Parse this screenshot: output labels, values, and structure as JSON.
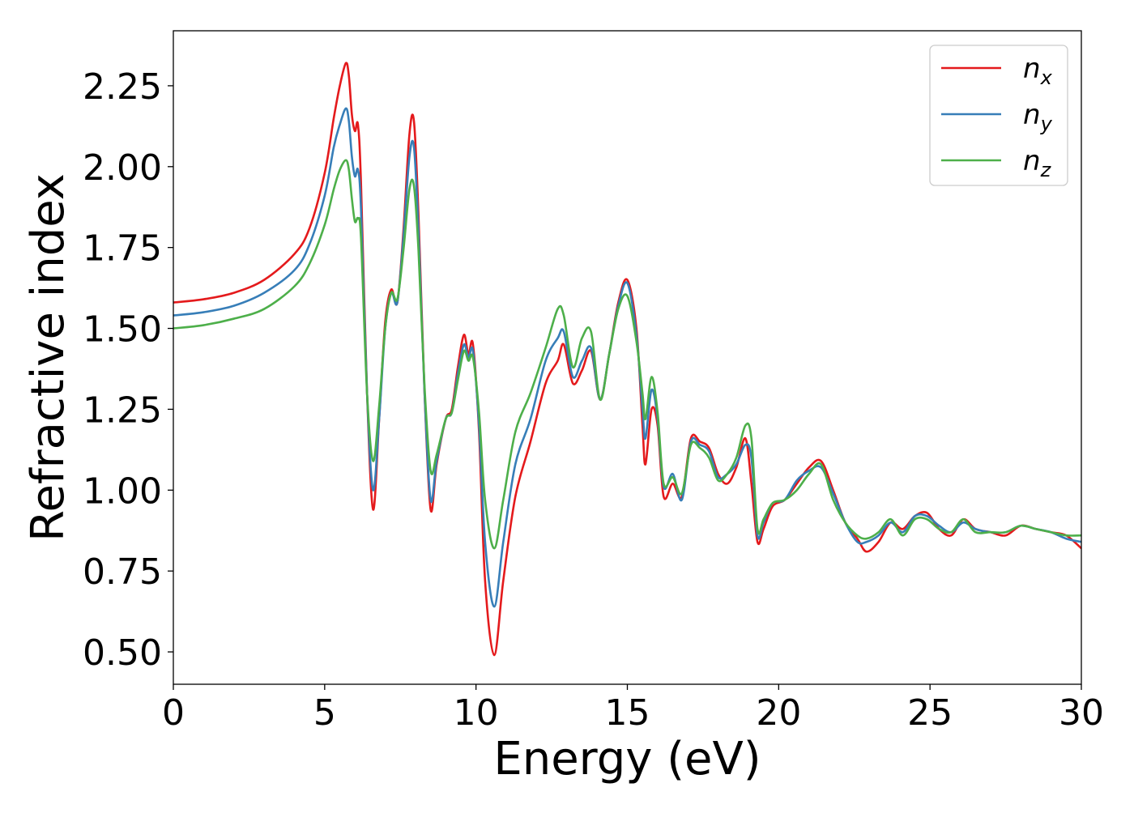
{
  "chart_data": {
    "type": "line",
    "title": "",
    "xlabel": "Energy (eV)",
    "ylabel": "Refractive index",
    "xlim": [
      0,
      30
    ],
    "ylim": [
      0.4,
      2.42
    ],
    "x_ticks": [
      0,
      5,
      10,
      15,
      20,
      25,
      30
    ],
    "y_ticks": [
      0.5,
      0.75,
      1.0,
      1.25,
      1.5,
      1.75,
      2.0,
      2.25
    ],
    "x_tick_labels": [
      "0",
      "5",
      "10",
      "15",
      "20",
      "25",
      "30"
    ],
    "y_tick_labels": [
      "0.50",
      "0.75",
      "1.00",
      "1.25",
      "1.50",
      "1.75",
      "2.00",
      "2.25"
    ],
    "grid": false,
    "legend_position": "top-right",
    "series": [
      {
        "name": "n",
        "subscript": "x",
        "color": "#e41a1c",
        "x": [
          0,
          1,
          2,
          3,
          4,
          4.5,
          5,
          5.3,
          5.5,
          5.7,
          5.8,
          5.9,
          6.0,
          6.1,
          6.2,
          6.4,
          6.6,
          6.8,
          7.0,
          7.2,
          7.4,
          7.6,
          7.8,
          7.95,
          8.1,
          8.3,
          8.5,
          8.7,
          9.0,
          9.2,
          9.4,
          9.6,
          9.75,
          9.9,
          10.1,
          10.3,
          10.6,
          10.9,
          11.3,
          11.8,
          12.3,
          12.7,
          12.9,
          13.2,
          13.5,
          13.8,
          14.1,
          14.4,
          14.7,
          15.0,
          15.3,
          15.5,
          15.6,
          15.8,
          16.0,
          16.2,
          16.5,
          16.8,
          17.1,
          17.4,
          17.7,
          18.0,
          18.3,
          18.6,
          18.9,
          19.1,
          19.3,
          19.5,
          19.8,
          20.2,
          20.6,
          21.0,
          21.4,
          21.8,
          22.2,
          22.6,
          22.9,
          23.3,
          23.7,
          24.1,
          24.5,
          24.9,
          25.3,
          25.7,
          26.1,
          26.5,
          27.0,
          27.5,
          28.0,
          28.5,
          29.0,
          29.5,
          30.0
        ],
        "y": [
          1.58,
          1.59,
          1.61,
          1.65,
          1.73,
          1.81,
          1.98,
          2.15,
          2.25,
          2.32,
          2.28,
          2.16,
          2.11,
          2.13,
          1.95,
          1.3,
          0.94,
          1.22,
          1.52,
          1.62,
          1.58,
          1.8,
          2.1,
          2.14,
          1.85,
          1.3,
          0.94,
          1.08,
          1.22,
          1.25,
          1.38,
          1.48,
          1.42,
          1.45,
          1.18,
          0.72,
          0.49,
          0.72,
          0.98,
          1.15,
          1.33,
          1.4,
          1.45,
          1.33,
          1.37,
          1.43,
          1.28,
          1.42,
          1.58,
          1.65,
          1.5,
          1.2,
          1.08,
          1.25,
          1.2,
          0.98,
          1.02,
          0.98,
          1.16,
          1.15,
          1.13,
          1.05,
          1.02,
          1.07,
          1.16,
          1.02,
          0.84,
          0.88,
          0.95,
          0.97,
          1.02,
          1.07,
          1.09,
          1.0,
          0.9,
          0.85,
          0.81,
          0.84,
          0.9,
          0.88,
          0.92,
          0.93,
          0.88,
          0.86,
          0.91,
          0.88,
          0.87,
          0.86,
          0.89,
          0.88,
          0.87,
          0.86,
          0.82
        ]
      },
      {
        "name": "n",
        "subscript": "y",
        "color": "#377eb8",
        "x": [
          0,
          1,
          2,
          3,
          4,
          4.5,
          5,
          5.3,
          5.5,
          5.7,
          5.8,
          5.9,
          6.0,
          6.1,
          6.2,
          6.4,
          6.6,
          6.8,
          7.0,
          7.2,
          7.4,
          7.6,
          7.8,
          7.95,
          8.1,
          8.3,
          8.5,
          8.7,
          9.0,
          9.2,
          9.4,
          9.6,
          9.75,
          9.9,
          10.1,
          10.3,
          10.6,
          10.9,
          11.3,
          11.8,
          12.3,
          12.7,
          12.9,
          13.2,
          13.5,
          13.8,
          14.1,
          14.4,
          14.7,
          15.0,
          15.3,
          15.5,
          15.6,
          15.8,
          16.0,
          16.2,
          16.5,
          16.8,
          17.1,
          17.4,
          17.7,
          18.0,
          18.3,
          18.6,
          18.9,
          19.1,
          19.3,
          19.5,
          19.8,
          20.2,
          20.6,
          21.0,
          21.4,
          21.8,
          22.2,
          22.6,
          22.9,
          23.3,
          23.7,
          24.1,
          24.5,
          24.9,
          25.3,
          25.7,
          26.1,
          26.5,
          27.0,
          27.5,
          28.0,
          28.5,
          29.0,
          29.5,
          30.0
        ],
        "y": [
          1.54,
          1.55,
          1.57,
          1.61,
          1.68,
          1.76,
          1.91,
          2.06,
          2.13,
          2.18,
          2.14,
          2.03,
          1.97,
          1.99,
          1.87,
          1.3,
          1.0,
          1.22,
          1.5,
          1.61,
          1.58,
          1.78,
          2.03,
          2.06,
          1.8,
          1.3,
          0.97,
          1.09,
          1.22,
          1.24,
          1.36,
          1.45,
          1.41,
          1.43,
          1.2,
          0.84,
          0.64,
          0.84,
          1.08,
          1.22,
          1.4,
          1.47,
          1.49,
          1.35,
          1.4,
          1.44,
          1.28,
          1.42,
          1.57,
          1.64,
          1.48,
          1.25,
          1.16,
          1.31,
          1.22,
          1.01,
          1.05,
          0.97,
          1.15,
          1.14,
          1.12,
          1.04,
          1.05,
          1.08,
          1.14,
          1.1,
          0.86,
          0.9,
          0.96,
          0.97,
          1.03,
          1.06,
          1.07,
          0.99,
          0.9,
          0.84,
          0.84,
          0.86,
          0.9,
          0.87,
          0.92,
          0.92,
          0.89,
          0.87,
          0.9,
          0.88,
          0.87,
          0.87,
          0.89,
          0.88,
          0.87,
          0.85,
          0.84
        ]
      },
      {
        "name": "n",
        "subscript": "z",
        "color": "#4daf4a",
        "x": [
          0,
          1,
          2,
          3,
          4,
          4.5,
          5,
          5.3,
          5.5,
          5.7,
          5.8,
          5.9,
          6.0,
          6.1,
          6.2,
          6.4,
          6.6,
          6.8,
          7.0,
          7.2,
          7.4,
          7.6,
          7.8,
          7.95,
          8.1,
          8.3,
          8.5,
          8.7,
          9.0,
          9.2,
          9.4,
          9.6,
          9.75,
          9.9,
          10.1,
          10.3,
          10.6,
          10.9,
          11.3,
          11.8,
          12.3,
          12.7,
          12.9,
          13.2,
          13.5,
          13.8,
          14.1,
          14.4,
          14.7,
          15.0,
          15.3,
          15.5,
          15.6,
          15.8,
          16.0,
          16.2,
          16.5,
          16.8,
          17.1,
          17.4,
          17.7,
          18.0,
          18.3,
          18.6,
          18.9,
          19.1,
          19.3,
          19.5,
          19.8,
          20.2,
          20.6,
          21.0,
          21.4,
          21.8,
          22.2,
          22.6,
          22.9,
          23.3,
          23.7,
          24.1,
          24.5,
          24.9,
          25.3,
          25.7,
          26.1,
          26.5,
          27.0,
          27.5,
          28.0,
          28.5,
          29.0,
          29.5,
          30.0
        ],
        "y": [
          1.5,
          1.51,
          1.53,
          1.56,
          1.63,
          1.7,
          1.82,
          1.93,
          1.99,
          2.02,
          1.99,
          1.9,
          1.83,
          1.84,
          1.78,
          1.3,
          1.09,
          1.26,
          1.5,
          1.61,
          1.59,
          1.74,
          1.93,
          1.94,
          1.74,
          1.32,
          1.06,
          1.11,
          1.22,
          1.24,
          1.34,
          1.43,
          1.4,
          1.41,
          1.24,
          0.97,
          0.82,
          0.97,
          1.18,
          1.3,
          1.44,
          1.56,
          1.54,
          1.38,
          1.47,
          1.49,
          1.28,
          1.42,
          1.56,
          1.6,
          1.46,
          1.3,
          1.22,
          1.35,
          1.24,
          1.02,
          1.04,
          0.99,
          1.14,
          1.13,
          1.1,
          1.03,
          1.05,
          1.1,
          1.2,
          1.16,
          0.88,
          0.91,
          0.96,
          0.97,
          1.0,
          1.05,
          1.08,
          0.97,
          0.9,
          0.86,
          0.85,
          0.87,
          0.91,
          0.86,
          0.91,
          0.91,
          0.88,
          0.87,
          0.91,
          0.87,
          0.87,
          0.87,
          0.89,
          0.88,
          0.87,
          0.86,
          0.86
        ]
      }
    ]
  }
}
